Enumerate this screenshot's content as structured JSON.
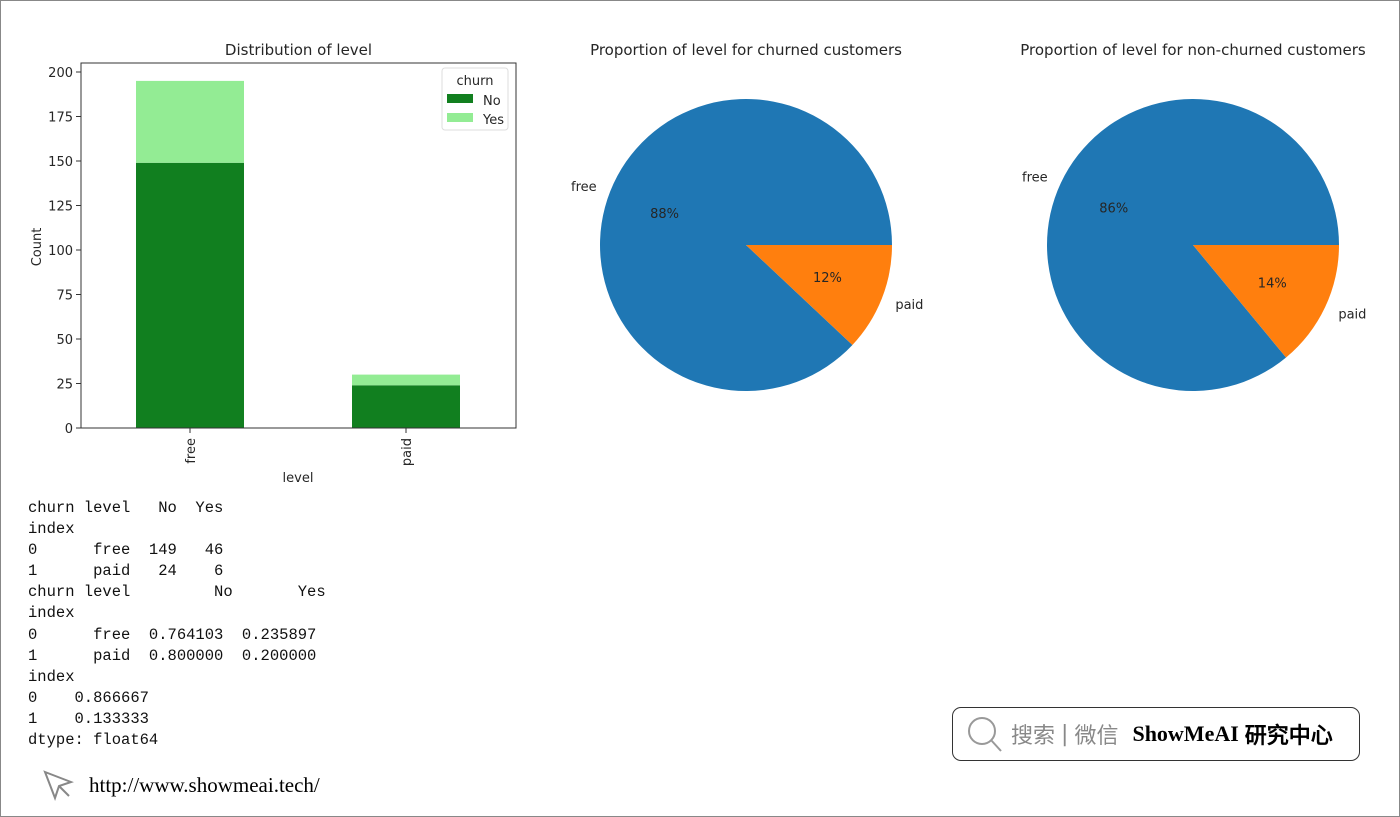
{
  "chart_data": [
    {
      "type": "bar",
      "stacked": true,
      "title": "Distribution of level",
      "xlabel": "level",
      "ylabel": "Count",
      "categories": [
        "free",
        "paid"
      ],
      "ylim": [
        0,
        205
      ],
      "yticks": [
        0,
        25,
        50,
        75,
        100,
        125,
        150,
        175,
        200
      ],
      "legend": {
        "title": "churn",
        "placement": "top-right"
      },
      "series": [
        {
          "name": "No",
          "values": [
            149,
            24
          ],
          "color": "#117f1f"
        },
        {
          "name": "Yes",
          "values": [
            46,
            6
          ],
          "color": "#93ec94"
        }
      ]
    },
    {
      "type": "pie",
      "title": "Proportion of level for churned customers",
      "labels": [
        "free",
        "paid"
      ],
      "values": [
        88,
        12
      ],
      "pct_labels": [
        "88%",
        "12%"
      ],
      "colors": [
        "#1f77b4",
        "#ff7f0e"
      ]
    },
    {
      "type": "pie",
      "title": "Proportion of level for non-churned customers",
      "labels": [
        "free",
        "paid"
      ],
      "values": [
        86,
        14
      ],
      "pct_labels": [
        "86%",
        "14%"
      ],
      "colors": [
        "#1f77b4",
        "#ff7f0e"
      ]
    }
  ],
  "output_lines": [
    "churn level   No  Yes",
    "index",
    "0      free  149   46",
    "1      paid   24    6",
    "churn level         No       Yes",
    "index",
    "0      free  0.764103  0.235897",
    "1      paid  0.800000  0.200000",
    "index",
    "0    0.866667",
    "1    0.133333",
    "dtype: float64"
  ],
  "badge": {
    "search": "搜索",
    "sep": "|",
    "wechat": "微信",
    "brand": "ShowMeAI",
    "suffix": "研究中心"
  },
  "link": "http://www.showmeai.tech/"
}
